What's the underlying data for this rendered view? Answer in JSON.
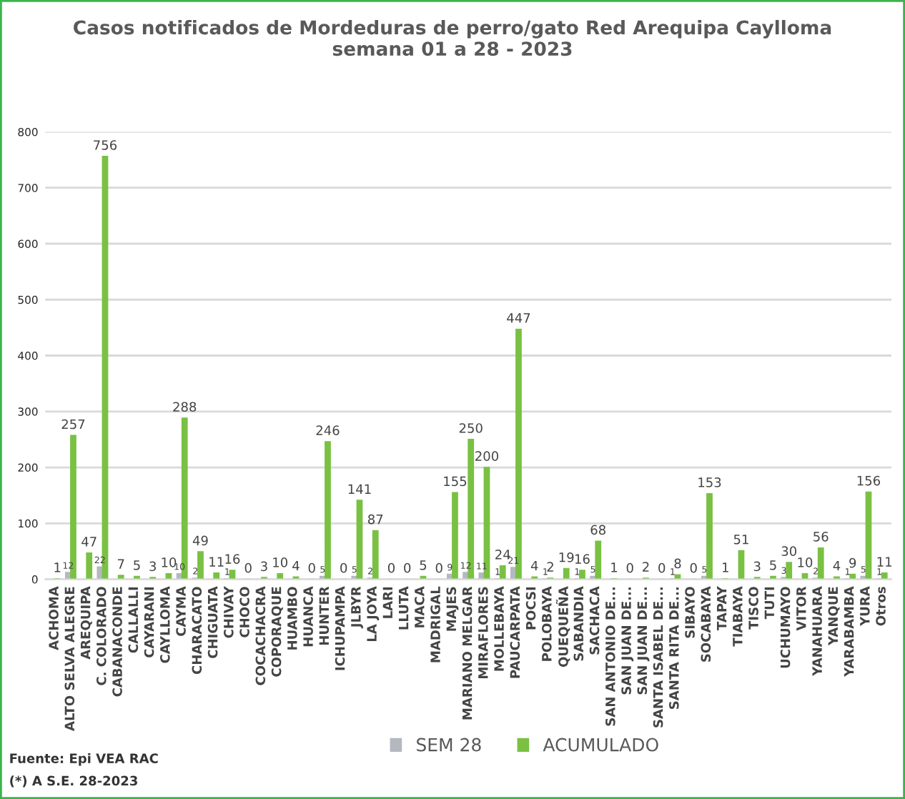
{
  "chart_data": {
    "type": "bar",
    "title": "Casos notificados de Mordeduras de perro/gato Red Arequipa Caylloma\nsemana 01 a 28 - 2023",
    "categories": [
      "ACHOMA",
      "ALTO SELVA ALEGRE",
      "AREQUIPA",
      "C. COLORADO",
      "CABANACONDE",
      "CALLALLI",
      "CAYARANI",
      "CAYLLOMA",
      "CAYMA",
      "CHARACATO",
      "CHIGUATA",
      "CHIVAY",
      "CHOCO",
      "COCACHACRA",
      "COPORAQUE",
      "HUAMBO",
      "HUANCA",
      "HUNTER",
      "ICHUPAMPA",
      "JLBYR",
      "LA JOYA",
      "LARI",
      "LLUTA",
      "MACA",
      "MADRIGAL",
      "MAJES",
      "MARIANO MELGAR",
      "MIRAFLORES",
      "MOLLEBAYA",
      "PAUCARPATA",
      "POCSI",
      "POLOBAYA",
      "QUEQUEÑA",
      "SABANDIA",
      "SACHACA",
      "SAN ANTONIO DE...",
      "SAN JUAN DE...",
      "SAN JUAN DE...",
      "SANTA ISABEL DE...",
      "SANTA RITA DE...",
      "SIBAYO",
      "SOCABAYA",
      "TAPAY",
      "TIABAYA",
      "TISCO",
      "TUTI",
      "UCHUMAYO",
      "VITOR",
      "YANAHUARA",
      "YANQUE",
      "YARABAMBA",
      "YURA",
      "Otros"
    ],
    "series": [
      {
        "name": "SEM 28",
        "color": "#b4b8c0",
        "values": [
          null,
          12,
          null,
          22,
          null,
          null,
          null,
          null,
          10,
          2,
          null,
          1,
          null,
          null,
          null,
          null,
          null,
          5,
          null,
          5,
          2,
          null,
          null,
          null,
          null,
          9,
          12,
          11,
          1,
          21,
          null,
          1,
          null,
          1,
          5,
          null,
          null,
          null,
          null,
          1,
          null,
          5,
          null,
          null,
          null,
          null,
          3,
          null,
          2,
          null,
          1,
          5,
          1
        ]
      },
      {
        "name": "ACUMULADO",
        "color": "#7ac143",
        "values": [
          1,
          257,
          47,
          756,
          7,
          5,
          3,
          10,
          288,
          49,
          11,
          16,
          0,
          3,
          10,
          4,
          0,
          246,
          0,
          141,
          87,
          0,
          0,
          5,
          0,
          155,
          250,
          200,
          24,
          447,
          4,
          2,
          19,
          16,
          68,
          1,
          0,
          2,
          0,
          8,
          0,
          153,
          1,
          51,
          3,
          5,
          30,
          10,
          56,
          4,
          9,
          156,
          11
        ]
      }
    ],
    "data_labels": true,
    "ylim": [
      0,
      800
    ],
    "yticks": [
      0,
      100,
      200,
      300,
      400,
      500,
      600,
      700,
      800
    ],
    "grid": "y",
    "legend": "bottom",
    "annotations": [
      "Fuente: Epi VEA RAC",
      "(*) A S.E. 28-2023"
    ]
  }
}
